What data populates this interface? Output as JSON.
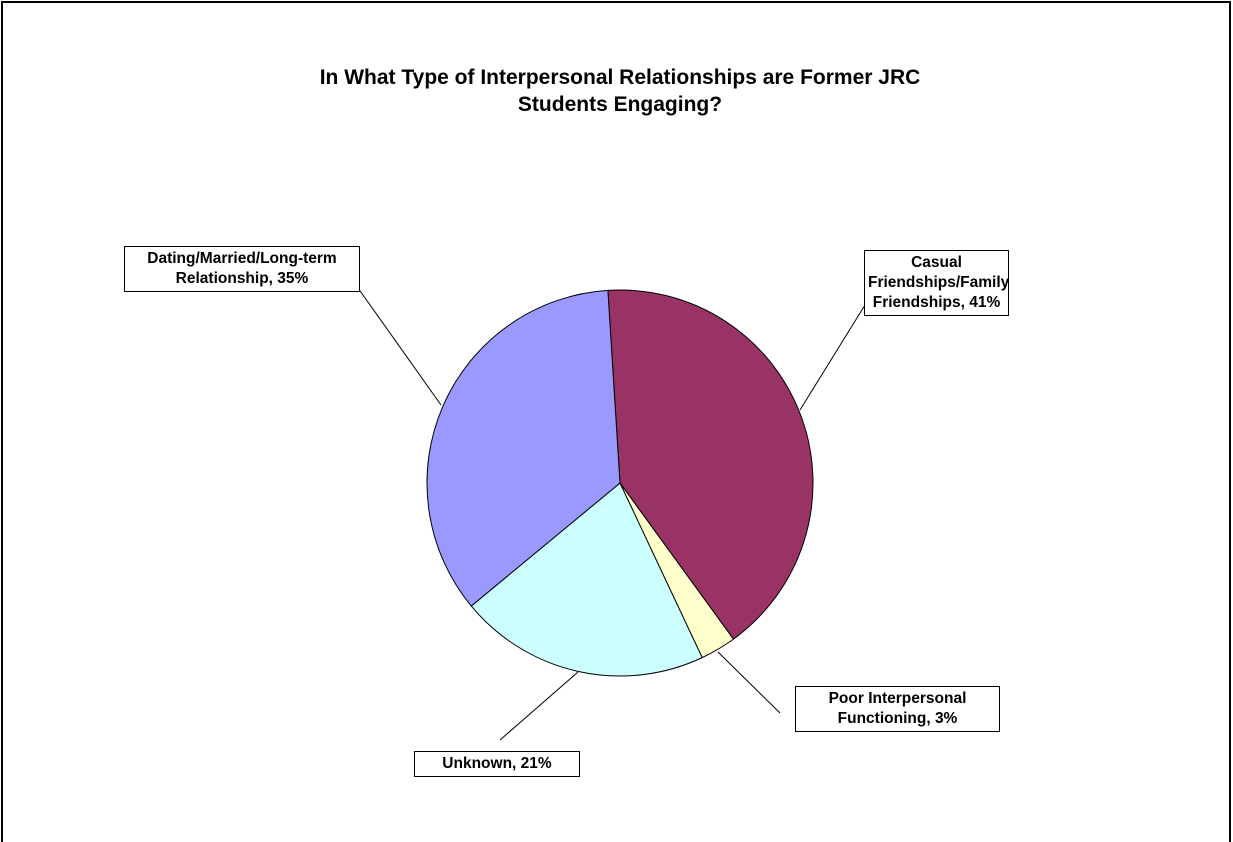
{
  "chart_data": {
    "type": "pie",
    "title": "In What Type of Interpersonal Relationships are Former JRC Students Engaging?",
    "values": [
      41,
      3,
      21,
      35
    ],
    "value_labels": [
      "Casual Friendships/Family Friendships, 41%",
      "Poor Interpersonal Functioning, 3%",
      "Unknown, 21%",
      "Dating/Married/Long-term Relationship, 35%"
    ],
    "colors": [
      "#993366",
      "#ffffcc",
      "#ccffff",
      "#9999ff"
    ]
  }
}
